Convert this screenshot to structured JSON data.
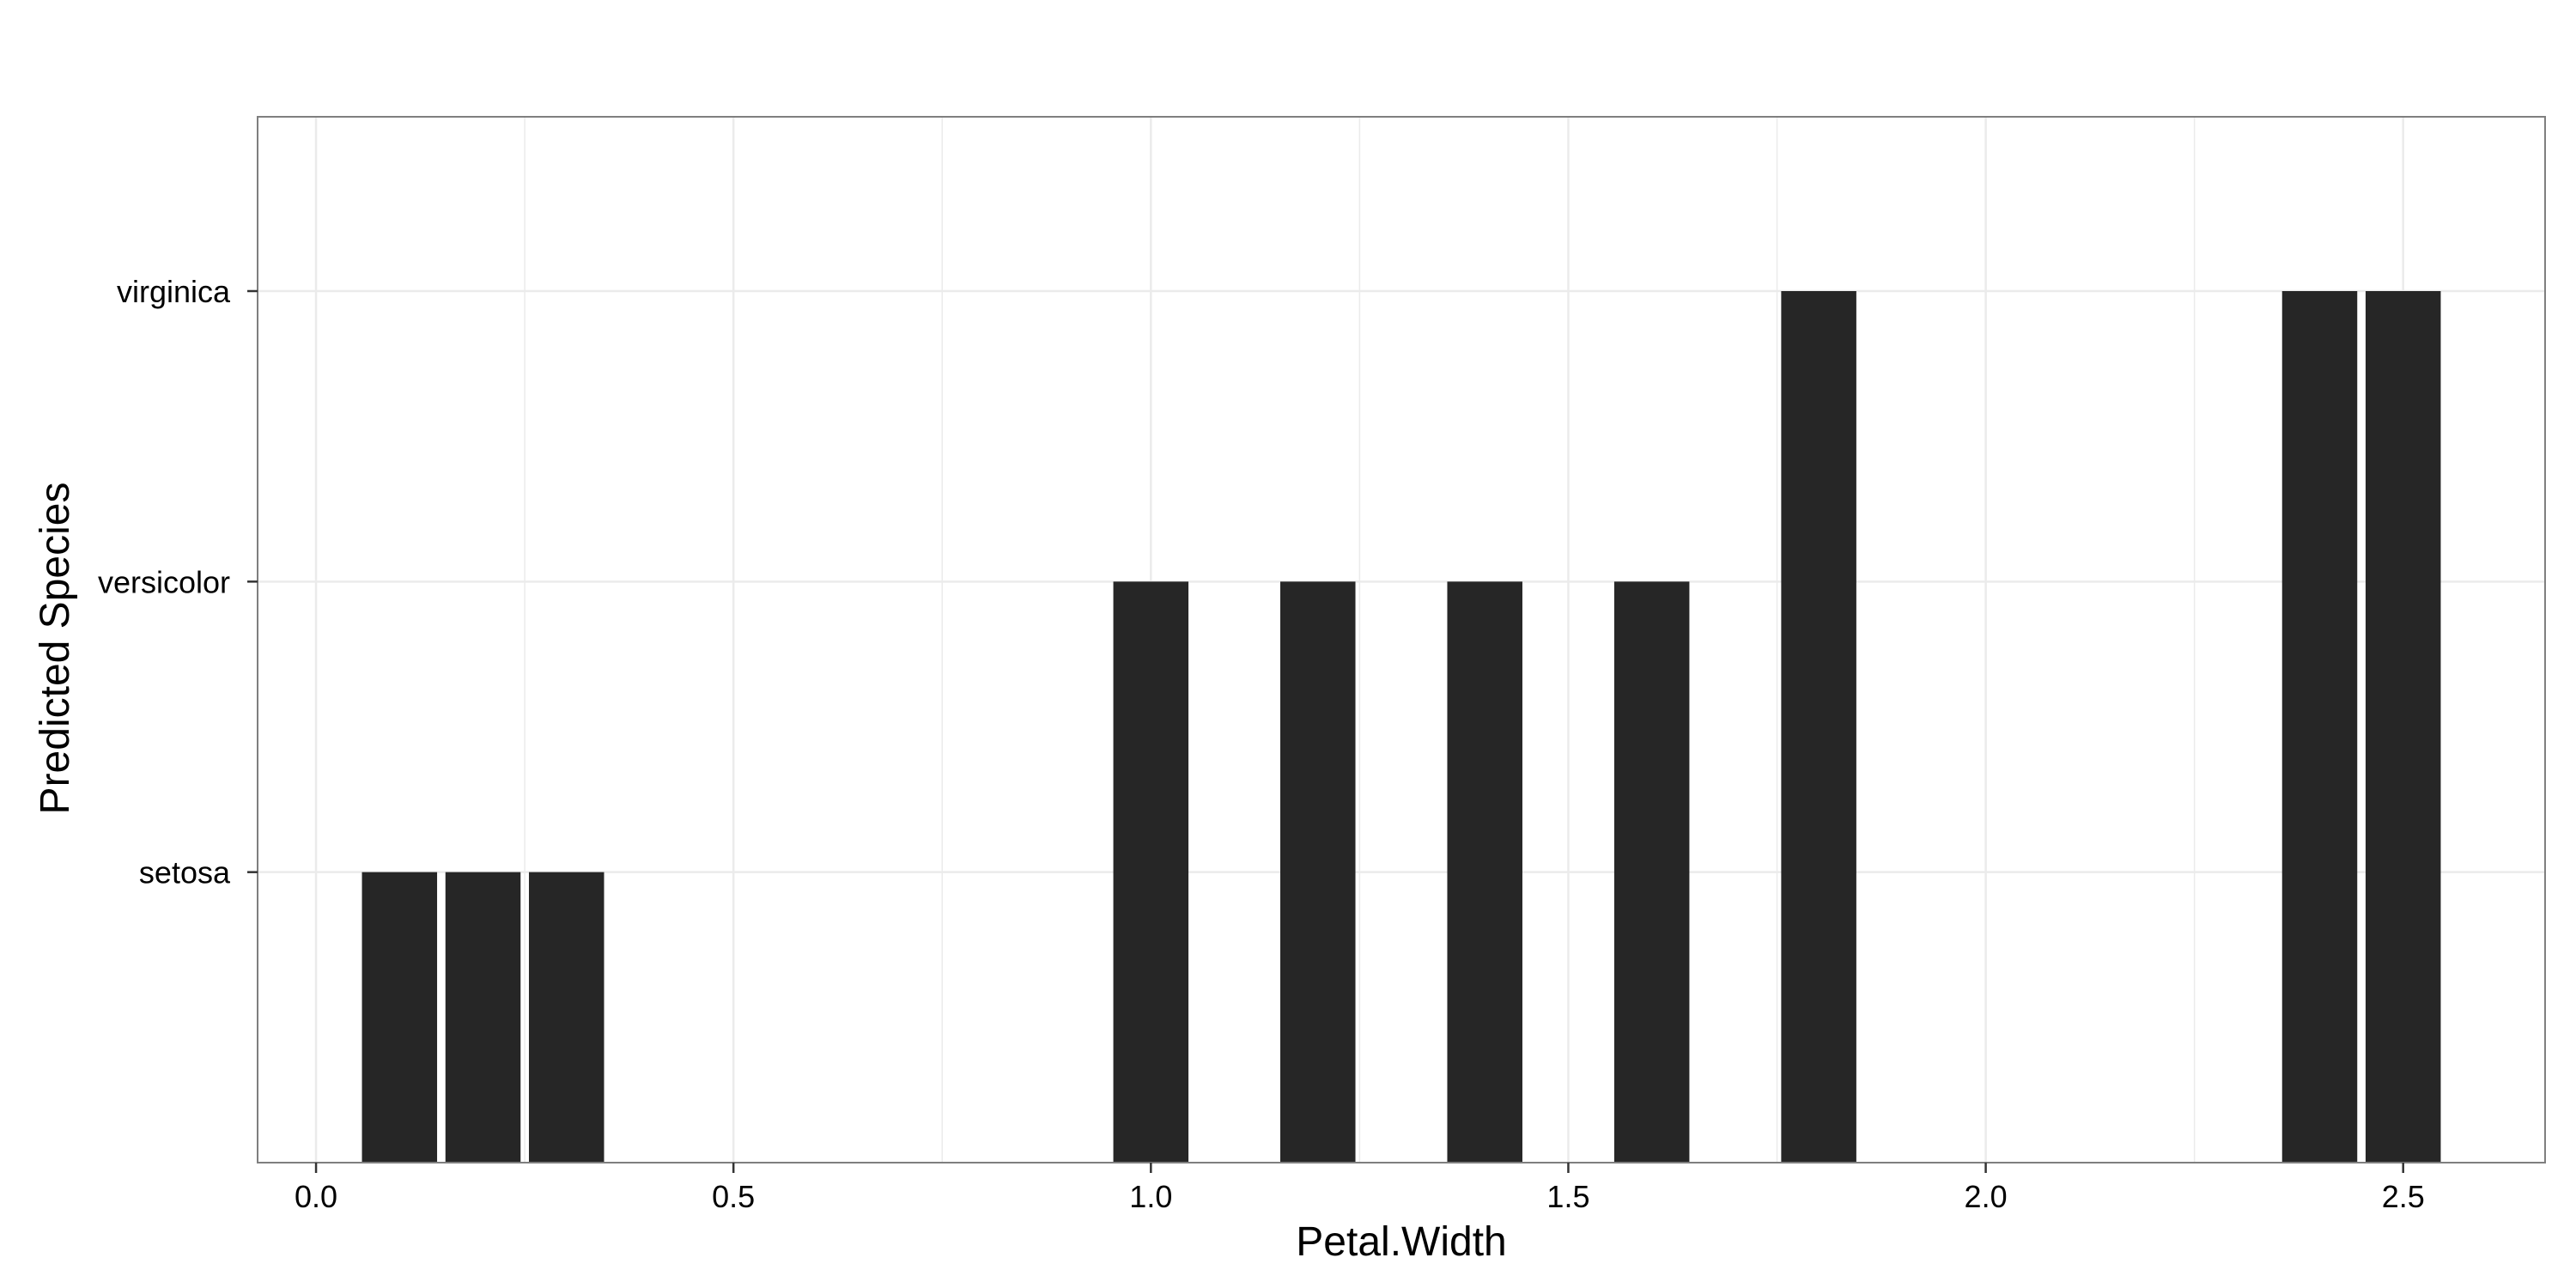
{
  "chart_data": {
    "type": "bar",
    "xlabel": "Petal.Width",
    "ylabel": "Predicted Species",
    "x": [
      0.1,
      0.2,
      0.3,
      1.0,
      1.2,
      1.4,
      1.6,
      1.8,
      2.4,
      2.5
    ],
    "values": [
      "setosa",
      "setosa",
      "setosa",
      "versicolor",
      "versicolor",
      "versicolor",
      "versicolor",
      "virginica",
      "virginica",
      "virginica"
    ],
    "y_categories": [
      "setosa",
      "versicolor",
      "virginica"
    ],
    "xlim": [
      -0.07,
      2.67
    ],
    "x_ticks": [
      0.0,
      0.5,
      1.0,
      1.5,
      2.0,
      2.5
    ],
    "x_tick_labels": [
      "0.0",
      "0.5",
      "1.0",
      "1.5",
      "2.0",
      "2.5"
    ],
    "grid": true,
    "legend": "none",
    "bar_color": "#262626",
    "gridline_color": "#ebebeb",
    "panel_border_color": "#7f7f7f"
  }
}
